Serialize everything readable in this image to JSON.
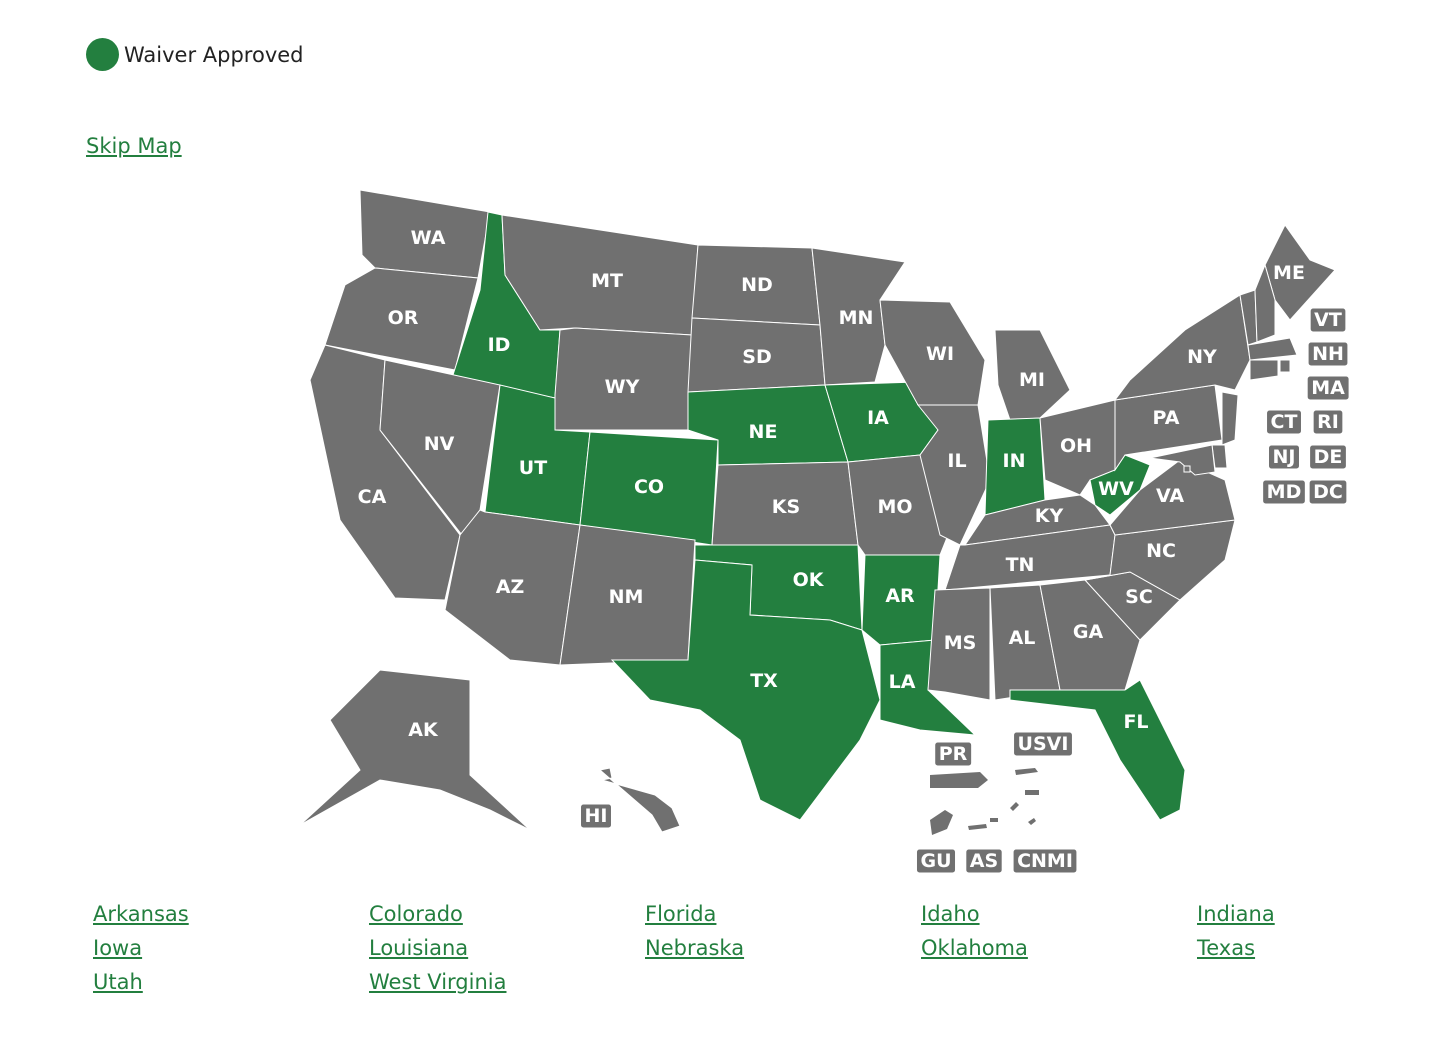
{
  "legend": {
    "label": "Waiver Approved"
  },
  "colors": {
    "approved": "#237f3f",
    "other": "#707070"
  },
  "skip_link": "Skip Map",
  "states": [
    {
      "abbr": "WA",
      "approved": false
    },
    {
      "abbr": "OR",
      "approved": false
    },
    {
      "abbr": "CA",
      "approved": false
    },
    {
      "abbr": "ID",
      "approved": true
    },
    {
      "abbr": "NV",
      "approved": false
    },
    {
      "abbr": "MT",
      "approved": false
    },
    {
      "abbr": "WY",
      "approved": false
    },
    {
      "abbr": "UT",
      "approved": true
    },
    {
      "abbr": "CO",
      "approved": true
    },
    {
      "abbr": "AZ",
      "approved": false
    },
    {
      "abbr": "NM",
      "approved": false
    },
    {
      "abbr": "ND",
      "approved": false
    },
    {
      "abbr": "SD",
      "approved": false
    },
    {
      "abbr": "NE",
      "approved": true
    },
    {
      "abbr": "KS",
      "approved": false
    },
    {
      "abbr": "OK",
      "approved": true
    },
    {
      "abbr": "TX",
      "approved": true
    },
    {
      "abbr": "MN",
      "approved": false
    },
    {
      "abbr": "IA",
      "approved": true
    },
    {
      "abbr": "MO",
      "approved": false
    },
    {
      "abbr": "AR",
      "approved": true
    },
    {
      "abbr": "LA",
      "approved": true
    },
    {
      "abbr": "WI",
      "approved": false
    },
    {
      "abbr": "IL",
      "approved": false
    },
    {
      "abbr": "MI",
      "approved": false
    },
    {
      "abbr": "IN",
      "approved": true
    },
    {
      "abbr": "OH",
      "approved": false
    },
    {
      "abbr": "KY",
      "approved": false
    },
    {
      "abbr": "TN",
      "approved": false
    },
    {
      "abbr": "MS",
      "approved": false
    },
    {
      "abbr": "AL",
      "approved": false
    },
    {
      "abbr": "GA",
      "approved": false
    },
    {
      "abbr": "FL",
      "approved": true
    },
    {
      "abbr": "SC",
      "approved": false
    },
    {
      "abbr": "NC",
      "approved": false
    },
    {
      "abbr": "VA",
      "approved": false
    },
    {
      "abbr": "WV",
      "approved": true
    },
    {
      "abbr": "PA",
      "approved": false
    },
    {
      "abbr": "NY",
      "approved": false
    },
    {
      "abbr": "ME",
      "approved": false
    },
    {
      "abbr": "VT",
      "approved": false
    },
    {
      "abbr": "NH",
      "approved": false
    },
    {
      "abbr": "MA",
      "approved": false
    },
    {
      "abbr": "RI",
      "approved": false
    },
    {
      "abbr": "CT",
      "approved": false
    },
    {
      "abbr": "NJ",
      "approved": false
    },
    {
      "abbr": "DE",
      "approved": false
    },
    {
      "abbr": "MD",
      "approved": false
    },
    {
      "abbr": "DC",
      "approved": false
    },
    {
      "abbr": "AK",
      "approved": false
    },
    {
      "abbr": "HI",
      "approved": false
    }
  ],
  "territories": [
    "PR",
    "USVI",
    "GU",
    "AS",
    "CNMI"
  ],
  "links": [
    "Arkansas",
    "Colorado",
    "Florida",
    "Idaho",
    "Indiana",
    "Iowa",
    "Louisiana",
    "Nebraska",
    "Oklahoma",
    "Texas",
    "Utah",
    "West Virginia"
  ]
}
